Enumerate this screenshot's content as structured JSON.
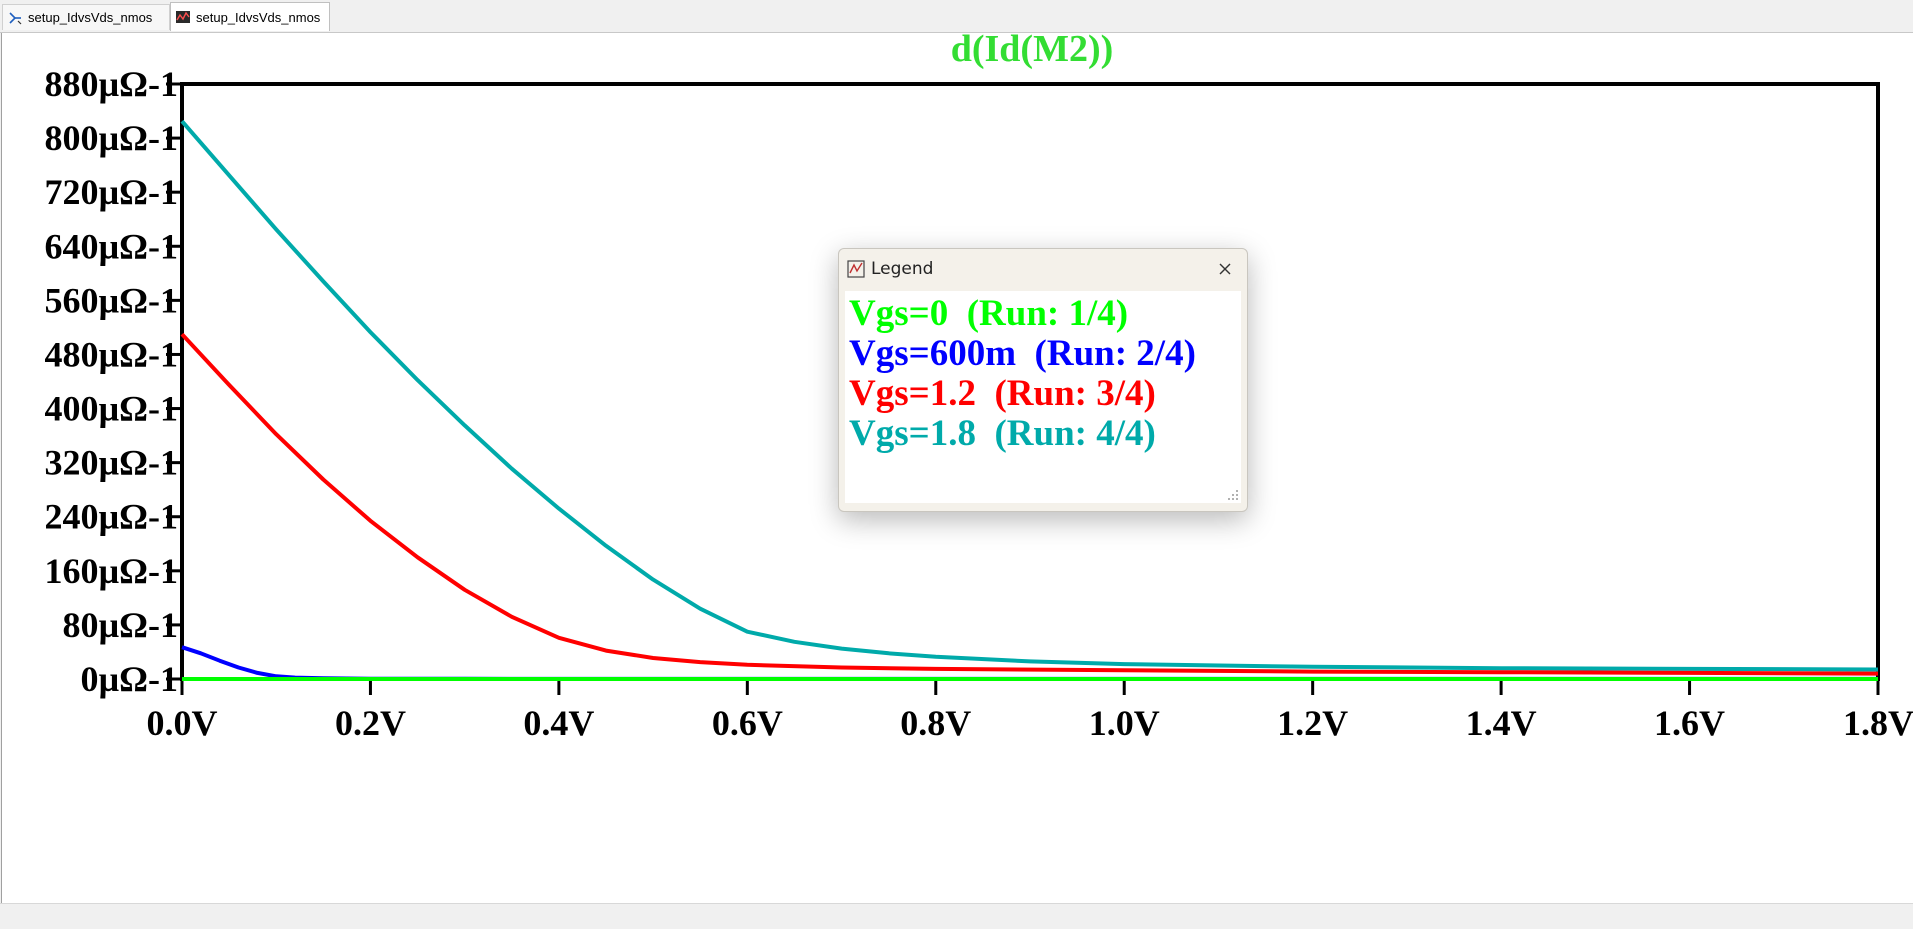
{
  "tabs": [
    {
      "label": "setup_IdvsVds_nmos",
      "icon": "schematic-icon"
    },
    {
      "label": "setup_IdvsVds_nmos",
      "icon": "waveform-icon"
    }
  ],
  "legend": {
    "title": "Legend",
    "entries": [
      {
        "label": "Vgs=0  (Run: 1/4)",
        "color": "#00ff00"
      },
      {
        "label": "Vgs=600m  (Run: 2/4)",
        "color": "#0000ff"
      },
      {
        "label": "Vgs=1.2  (Run: 3/4)",
        "color": "#ff0000"
      },
      {
        "label": "Vgs=1.8  (Run: 4/4)",
        "color": "#00aaaa"
      }
    ]
  },
  "chart_data": {
    "type": "line",
    "title": "d(Id(M2))",
    "title_color": "#33dd33",
    "xlabel": "",
    "ylabel": "",
    "xlim": [
      0,
      1.8
    ],
    "ylim": [
      0,
      880
    ],
    "x_ticks": [
      0,
      0.2,
      0.4,
      0.6,
      0.8,
      1.0,
      1.2,
      1.4,
      1.6,
      1.8
    ],
    "x_tick_labels": [
      "0.0V",
      "0.2V",
      "0.4V",
      "0.6V",
      "0.8V",
      "1.0V",
      "1.2V",
      "1.4V",
      "1.6V",
      "1.8V"
    ],
    "y_ticks": [
      0,
      80,
      160,
      240,
      320,
      400,
      480,
      560,
      640,
      720,
      800,
      880
    ],
    "y_tick_labels": [
      "0µΩ-1",
      "80µΩ-1",
      "160µΩ-1",
      "240µΩ-1",
      "320µΩ-1",
      "400µΩ-1",
      "480µΩ-1",
      "560µΩ-1",
      "640µΩ-1",
      "720µΩ-1",
      "800µΩ-1",
      "880µΩ-1"
    ],
    "grid": false,
    "legend_position": "center",
    "series": [
      {
        "name": "Vgs=0  (Run: 1/4)",
        "color": "#00ff00",
        "x": [
          0,
          0.2,
          0.4,
          0.6,
          0.8,
          1.0,
          1.2,
          1.4,
          1.6,
          1.8
        ],
        "y": [
          0,
          0,
          0,
          0,
          0,
          0,
          0,
          0,
          0,
          0
        ]
      },
      {
        "name": "Vgs=600m  (Run: 2/4)",
        "color": "#0000ff",
        "x": [
          0,
          0.02,
          0.04,
          0.06,
          0.08,
          0.1,
          0.12,
          0.15,
          0.2,
          0.3,
          0.5,
          0.8,
          1.2,
          1.8
        ],
        "y": [
          47,
          38,
          27,
          17,
          9,
          4,
          2,
          1,
          0.5,
          0.3,
          0.2,
          0.2,
          0.2,
          0.2
        ]
      },
      {
        "name": "Vgs=1.2  (Run: 3/4)",
        "color": "#ff0000",
        "x": [
          0,
          0.05,
          0.1,
          0.15,
          0.2,
          0.25,
          0.3,
          0.35,
          0.4,
          0.45,
          0.5,
          0.55,
          0.6,
          0.7,
          0.8,
          1.0,
          1.2,
          1.4,
          1.6,
          1.8
        ],
        "y": [
          510,
          435,
          362,
          295,
          234,
          180,
          132,
          92,
          61,
          42,
          31,
          25,
          21,
          17,
          15,
          13,
          11,
          10,
          9,
          8
        ]
      },
      {
        "name": "Vgs=1.8  (Run: 4/4)",
        "color": "#00aaaa",
        "x": [
          0,
          0.05,
          0.1,
          0.15,
          0.2,
          0.25,
          0.3,
          0.35,
          0.4,
          0.45,
          0.5,
          0.55,
          0.6,
          0.65,
          0.7,
          0.75,
          0.8,
          0.9,
          1.0,
          1.2,
          1.4,
          1.6,
          1.8
        ],
        "y": [
          825,
          745,
          665,
          588,
          513,
          442,
          375,
          311,
          252,
          197,
          147,
          104,
          70,
          55,
          45,
          38,
          33,
          26,
          22,
          18,
          16,
          15,
          14
        ]
      }
    ]
  }
}
